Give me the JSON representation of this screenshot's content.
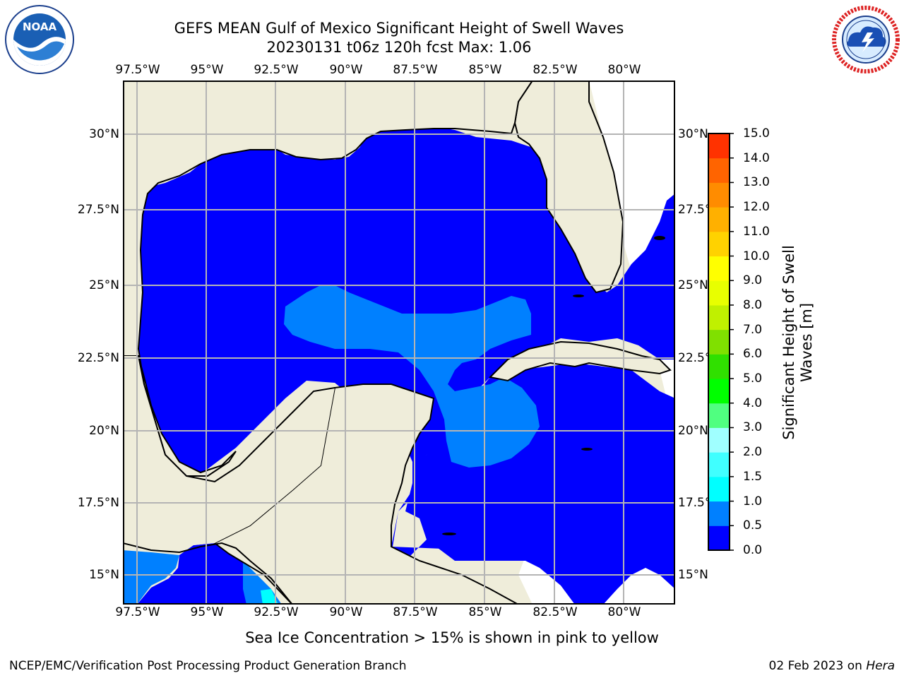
{
  "header": {
    "title_line1": "GEFS MEAN Gulf of Mexico Significant Height of Swell Waves",
    "title_line2": "20230131 t06z 120h fcst   Max: 1.06"
  },
  "logos": {
    "noaa": {
      "icon": "noaa-logo-icon",
      "text": "NOAA",
      "ring_text": "NATIONAL OCEANIC AND ATMOSPHERIC ADMINISTRATION · U.S. DEPARTMENT OF COMMERCE"
    },
    "nws": {
      "icon": "nws-logo-icon",
      "ring_text": "NATIONAL WEATHER SERVICE"
    }
  },
  "map": {
    "longitude_labels": [
      "97.5°W",
      "95°W",
      "92.5°W",
      "90°W",
      "87.5°W",
      "85°W",
      "82.5°W",
      "80°W"
    ],
    "latitude_labels": [
      "30°N",
      "27.5°N",
      "25°N",
      "22.5°N",
      "20°N",
      "17.5°N",
      "15°N"
    ],
    "colors": {
      "land": "#efedda",
      "water_0_0.5": "#0000ff",
      "water_0.5_1.0": "#0080ff",
      "water_1.0_1.5": "#00ffff",
      "gridlines": "#b4b4b4",
      "coastline": "#000000"
    }
  },
  "colorbar": {
    "label_line1": "Significant Height of Swell",
    "label_line2": "Waves [m]",
    "ticks": [
      "0.0",
      "0.5",
      "1.0",
      "1.5",
      "2.0",
      "3.0",
      "4.0",
      "5.0",
      "6.0",
      "7.0",
      "8.0",
      "9.0",
      "10.0",
      "11.0",
      "12.0",
      "13.0",
      "14.0",
      "15.0"
    ],
    "colors": [
      "#0000ff",
      "#0080ff",
      "#00ffff",
      "#40ffff",
      "#a0ffff",
      "#50ff80",
      "#00ff00",
      "#30e000",
      "#80e000",
      "#c0f000",
      "#e8ff00",
      "#ffff00",
      "#ffd200",
      "#ffb000",
      "#ff8c00",
      "#ff6400",
      "#ff3200"
    ]
  },
  "ice_note": "Sea Ice Concentration > 15% is shown in pink to yellow",
  "footer": {
    "left": "NCEP/EMC/Verification Post Processing Product Generation Branch",
    "right_date": "02 Feb 2023 on ",
    "right_host": "Hera"
  }
}
